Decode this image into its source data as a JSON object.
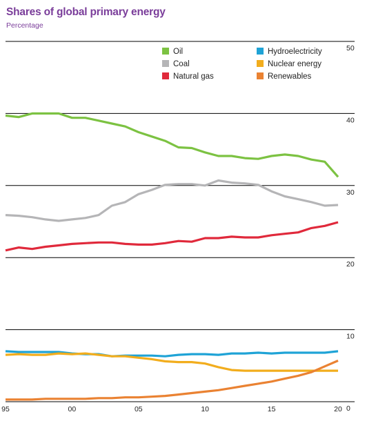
{
  "title": "Shares of global primary energy",
  "subtitle": "Percentage",
  "chart_data": {
    "type": "line",
    "title": "Shares of global primary energy",
    "subtitle": "Percentage",
    "x": [
      1995,
      1996,
      1997,
      1998,
      1999,
      2000,
      2001,
      2002,
      2003,
      2004,
      2005,
      2006,
      2007,
      2008,
      2009,
      2010,
      2011,
      2012,
      2013,
      2014,
      2015,
      2016,
      2017,
      2018,
      2019,
      2020
    ],
    "x_tick_values": [
      1995,
      2000,
      2005,
      2010,
      2015,
      2020
    ],
    "x_tick_labels": [
      "95",
      "00",
      "05",
      "10",
      "15",
      "20"
    ],
    "y_ticks": [
      0,
      10,
      20,
      30,
      40,
      50
    ],
    "ylim": [
      0,
      50
    ],
    "grid": "horizontal",
    "legend_position": "top",
    "series": [
      {
        "name": "Oil",
        "color": "#7cc242",
        "values": [
          39.7,
          39.5,
          40.0,
          40.0,
          40.0,
          39.4,
          39.4,
          39.0,
          38.6,
          38.2,
          37.4,
          36.8,
          36.2,
          35.3,
          35.2,
          34.6,
          34.1,
          34.1,
          33.8,
          33.7,
          34.1,
          34.3,
          34.1,
          33.6,
          33.3,
          31.2
        ]
      },
      {
        "name": "Coal",
        "color": "#b5b5b7",
        "values": [
          25.9,
          25.8,
          25.6,
          25.3,
          25.1,
          25.3,
          25.5,
          25.9,
          27.2,
          27.7,
          28.8,
          29.4,
          30.1,
          30.2,
          30.2,
          30.0,
          30.7,
          30.4,
          30.3,
          30.1,
          29.2,
          28.5,
          28.1,
          27.7,
          27.2,
          27.3
        ]
      },
      {
        "name": "Natural gas",
        "color": "#e0293b",
        "values": [
          21.0,
          21.4,
          21.2,
          21.5,
          21.7,
          21.9,
          22.0,
          22.1,
          22.1,
          21.9,
          21.8,
          21.8,
          22.0,
          22.3,
          22.2,
          22.7,
          22.7,
          22.9,
          22.8,
          22.8,
          23.1,
          23.3,
          23.5,
          24.1,
          24.4,
          24.9
        ]
      },
      {
        "name": "Hydroelectricity",
        "color": "#1fa3d6",
        "values": [
          7.0,
          6.9,
          6.9,
          6.9,
          6.9,
          6.7,
          6.6,
          6.6,
          6.3,
          6.4,
          6.4,
          6.4,
          6.3,
          6.5,
          6.6,
          6.6,
          6.5,
          6.7,
          6.7,
          6.8,
          6.7,
          6.8,
          6.8,
          6.8,
          6.8,
          7.0
        ]
      },
      {
        "name": "Nuclear energy",
        "color": "#f2ad1d",
        "values": [
          6.5,
          6.6,
          6.5,
          6.5,
          6.7,
          6.6,
          6.7,
          6.5,
          6.3,
          6.3,
          6.1,
          5.9,
          5.6,
          5.5,
          5.5,
          5.3,
          4.8,
          4.4,
          4.3,
          4.3,
          4.3,
          4.3,
          4.3,
          4.3,
          4.3,
          4.3
        ]
      },
      {
        "name": "Renewables",
        "color": "#ea8232",
        "values": [
          0.3,
          0.3,
          0.3,
          0.4,
          0.4,
          0.4,
          0.4,
          0.5,
          0.5,
          0.6,
          0.6,
          0.7,
          0.8,
          1.0,
          1.2,
          1.4,
          1.6,
          1.9,
          2.2,
          2.5,
          2.8,
          3.2,
          3.6,
          4.1,
          4.9,
          5.7
        ]
      }
    ]
  }
}
